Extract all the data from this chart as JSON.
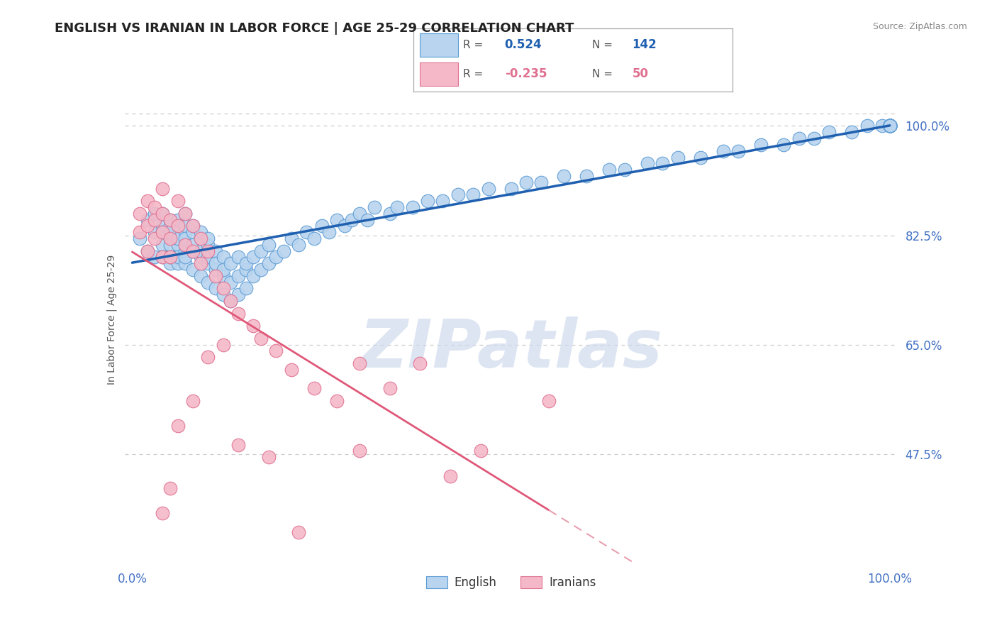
{
  "title": "ENGLISH VS IRANIAN IN LABOR FORCE | AGE 25-29 CORRELATION CHART",
  "source": "Source: ZipAtlas.com",
  "ylabel": "In Labor Force | Age 25-29",
  "xlim": [
    -0.01,
    1.01
  ],
  "ylim": [
    0.3,
    1.08
  ],
  "yticks": [
    0.475,
    0.65,
    0.825,
    1.0
  ],
  "ytick_labels": [
    "47.5%",
    "65.0%",
    "82.5%",
    "100.0%"
  ],
  "xtick_labels": [
    "0.0%",
    "100.0%"
  ],
  "xticks": [
    0.0,
    1.0
  ],
  "english_R": 0.524,
  "english_N": 142,
  "iranian_R": -0.235,
  "iranian_N": 50,
  "english_color": "#b8d4ee",
  "english_edge_color": "#5b9bd5",
  "iranian_color": "#f4b8c8",
  "iranian_edge_color": "#e07090",
  "english_line_color": "#2060b0",
  "iranian_line_color": "#e05878",
  "iranian_line_dash_color": "#e8a0b0",
  "grid_color": "#cccccc",
  "tick_label_color": "#4472c4",
  "title_color": "#222222",
  "source_color": "#888888",
  "ylabel_color": "#555555",
  "watermark_color": "#ccd8ec",
  "background_color": "#ffffff",
  "english_scatter_x": [
    0.01,
    0.02,
    0.02,
    0.03,
    0.03,
    0.03,
    0.04,
    0.04,
    0.04,
    0.04,
    0.04,
    0.05,
    0.05,
    0.05,
    0.05,
    0.05,
    0.05,
    0.05,
    0.06,
    0.06,
    0.06,
    0.06,
    0.06,
    0.06,
    0.07,
    0.07,
    0.07,
    0.07,
    0.07,
    0.07,
    0.07,
    0.07,
    0.08,
    0.08,
    0.08,
    0.08,
    0.08,
    0.09,
    0.09,
    0.09,
    0.09,
    0.09,
    0.1,
    0.1,
    0.1,
    0.1,
    0.1,
    0.11,
    0.11,
    0.11,
    0.11,
    0.12,
    0.12,
    0.12,
    0.12,
    0.13,
    0.13,
    0.13,
    0.14,
    0.14,
    0.14,
    0.15,
    0.15,
    0.15,
    0.16,
    0.16,
    0.17,
    0.17,
    0.18,
    0.18,
    0.19,
    0.2,
    0.21,
    0.22,
    0.23,
    0.24,
    0.25,
    0.26,
    0.27,
    0.28,
    0.29,
    0.3,
    0.31,
    0.32,
    0.34,
    0.35,
    0.37,
    0.39,
    0.41,
    0.43,
    0.45,
    0.47,
    0.5,
    0.52,
    0.54,
    0.57,
    0.6,
    0.63,
    0.65,
    0.68,
    0.7,
    0.72,
    0.75,
    0.78,
    0.8,
    0.83,
    0.86,
    0.88,
    0.9,
    0.92,
    0.95,
    0.97,
    0.99,
    1.0,
    1.0,
    1.0,
    1.0,
    1.0,
    1.0,
    1.0,
    1.0,
    1.0,
    1.0,
    1.0,
    1.0,
    1.0,
    1.0,
    1.0,
    1.0,
    1.0,
    1.0,
    1.0,
    1.0,
    1.0,
    1.0,
    1.0,
    1.0,
    1.0,
    1.0,
    1.0,
    1.0,
    1.0
  ],
  "english_scatter_y": [
    0.82,
    0.85,
    0.8,
    0.83,
    0.86,
    0.79,
    0.84,
    0.81,
    0.86,
    0.79,
    0.83,
    0.82,
    0.85,
    0.78,
    0.81,
    0.84,
    0.79,
    0.83,
    0.81,
    0.84,
    0.78,
    0.82,
    0.85,
    0.79,
    0.8,
    0.83,
    0.86,
    0.78,
    0.81,
    0.84,
    0.79,
    0.82,
    0.8,
    0.83,
    0.77,
    0.81,
    0.84,
    0.79,
    0.82,
    0.76,
    0.8,
    0.83,
    0.78,
    0.81,
    0.75,
    0.79,
    0.82,
    0.77,
    0.8,
    0.74,
    0.78,
    0.76,
    0.79,
    0.73,
    0.77,
    0.75,
    0.78,
    0.72,
    0.76,
    0.79,
    0.73,
    0.77,
    0.74,
    0.78,
    0.76,
    0.79,
    0.77,
    0.8,
    0.78,
    0.81,
    0.79,
    0.8,
    0.82,
    0.81,
    0.83,
    0.82,
    0.84,
    0.83,
    0.85,
    0.84,
    0.85,
    0.86,
    0.85,
    0.87,
    0.86,
    0.87,
    0.87,
    0.88,
    0.88,
    0.89,
    0.89,
    0.9,
    0.9,
    0.91,
    0.91,
    0.92,
    0.92,
    0.93,
    0.93,
    0.94,
    0.94,
    0.95,
    0.95,
    0.96,
    0.96,
    0.97,
    0.97,
    0.98,
    0.98,
    0.99,
    0.99,
    1.0,
    1.0,
    1.0,
    1.0,
    1.0,
    1.0,
    1.0,
    1.0,
    1.0,
    1.0,
    1.0,
    1.0,
    1.0,
    1.0,
    1.0,
    1.0,
    1.0,
    1.0,
    1.0,
    1.0,
    1.0,
    1.0,
    1.0,
    1.0,
    1.0,
    1.0,
    1.0,
    1.0,
    1.0,
    1.0,
    1.0
  ],
  "iranian_scatter_x": [
    0.01,
    0.01,
    0.02,
    0.02,
    0.02,
    0.03,
    0.03,
    0.03,
    0.04,
    0.04,
    0.04,
    0.04,
    0.05,
    0.05,
    0.05,
    0.06,
    0.06,
    0.07,
    0.07,
    0.08,
    0.08,
    0.09,
    0.09,
    0.1,
    0.11,
    0.12,
    0.13,
    0.14,
    0.16,
    0.17,
    0.19,
    0.21,
    0.24,
    0.27,
    0.3,
    0.34,
    0.38,
    0.42,
    0.46,
    0.55,
    0.12,
    0.1,
    0.08,
    0.06,
    0.05,
    0.04,
    0.14,
    0.18,
    0.22,
    0.3
  ],
  "iranian_scatter_y": [
    0.86,
    0.83,
    0.88,
    0.84,
    0.8,
    0.85,
    0.82,
    0.87,
    0.83,
    0.79,
    0.86,
    0.9,
    0.82,
    0.85,
    0.79,
    0.84,
    0.88,
    0.81,
    0.86,
    0.8,
    0.84,
    0.82,
    0.78,
    0.8,
    0.76,
    0.74,
    0.72,
    0.7,
    0.68,
    0.66,
    0.64,
    0.61,
    0.58,
    0.56,
    0.62,
    0.58,
    0.62,
    0.44,
    0.48,
    0.56,
    0.65,
    0.63,
    0.56,
    0.52,
    0.42,
    0.38,
    0.49,
    0.47,
    0.35,
    0.48
  ]
}
